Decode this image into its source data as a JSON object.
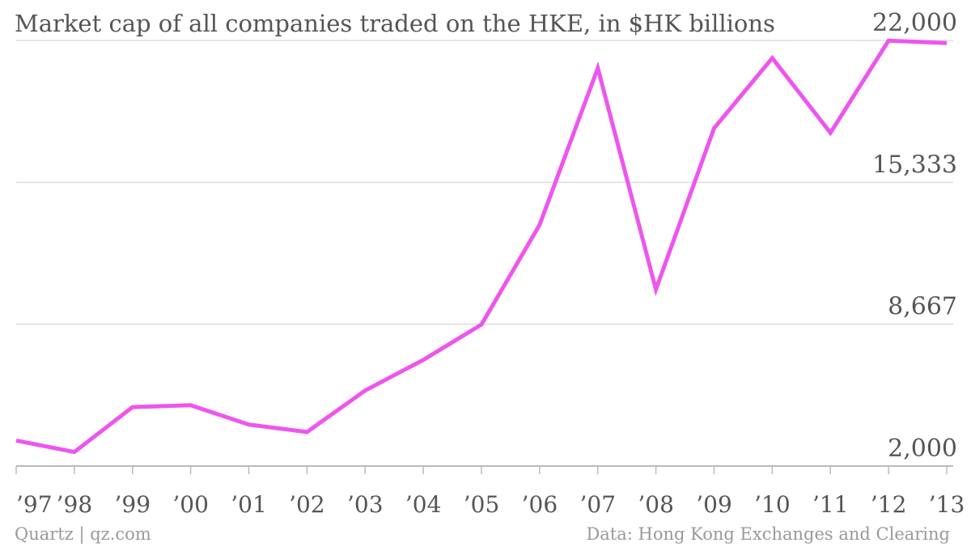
{
  "chart_data": {
    "type": "line",
    "title": "Market cap of all companies traded on the HKE, in $HK billions",
    "xlabel": "",
    "ylabel": "",
    "categories": [
      "’97",
      "’98",
      "’99",
      "’00",
      "’01",
      "’02",
      "’03",
      "’04",
      "’05",
      "’06",
      "’07",
      "’08",
      "’09",
      "’10",
      "’11",
      "’12",
      "’13"
    ],
    "series": [
      {
        "color": "#ee55ee",
        "values": [
          3200,
          2660,
          4770,
          4860,
          3950,
          3600,
          5550,
          6990,
          8650,
          13340,
          20700,
          10300,
          17880,
          21170,
          17660,
          21990,
          21880
        ]
      }
    ],
    "ylim": [
      2000,
      22000
    ],
    "yticks": [
      2000,
      8667,
      15333,
      22000
    ],
    "ytick_labels": [
      "2,000",
      "8,667",
      "15,333",
      "22,000"
    ],
    "y_axis_side": "right",
    "grid": true,
    "legend": "none"
  },
  "footer": {
    "credit": "Quartz | qz.com",
    "source": "Data: Hong Kong Exchanges and Clearing"
  }
}
